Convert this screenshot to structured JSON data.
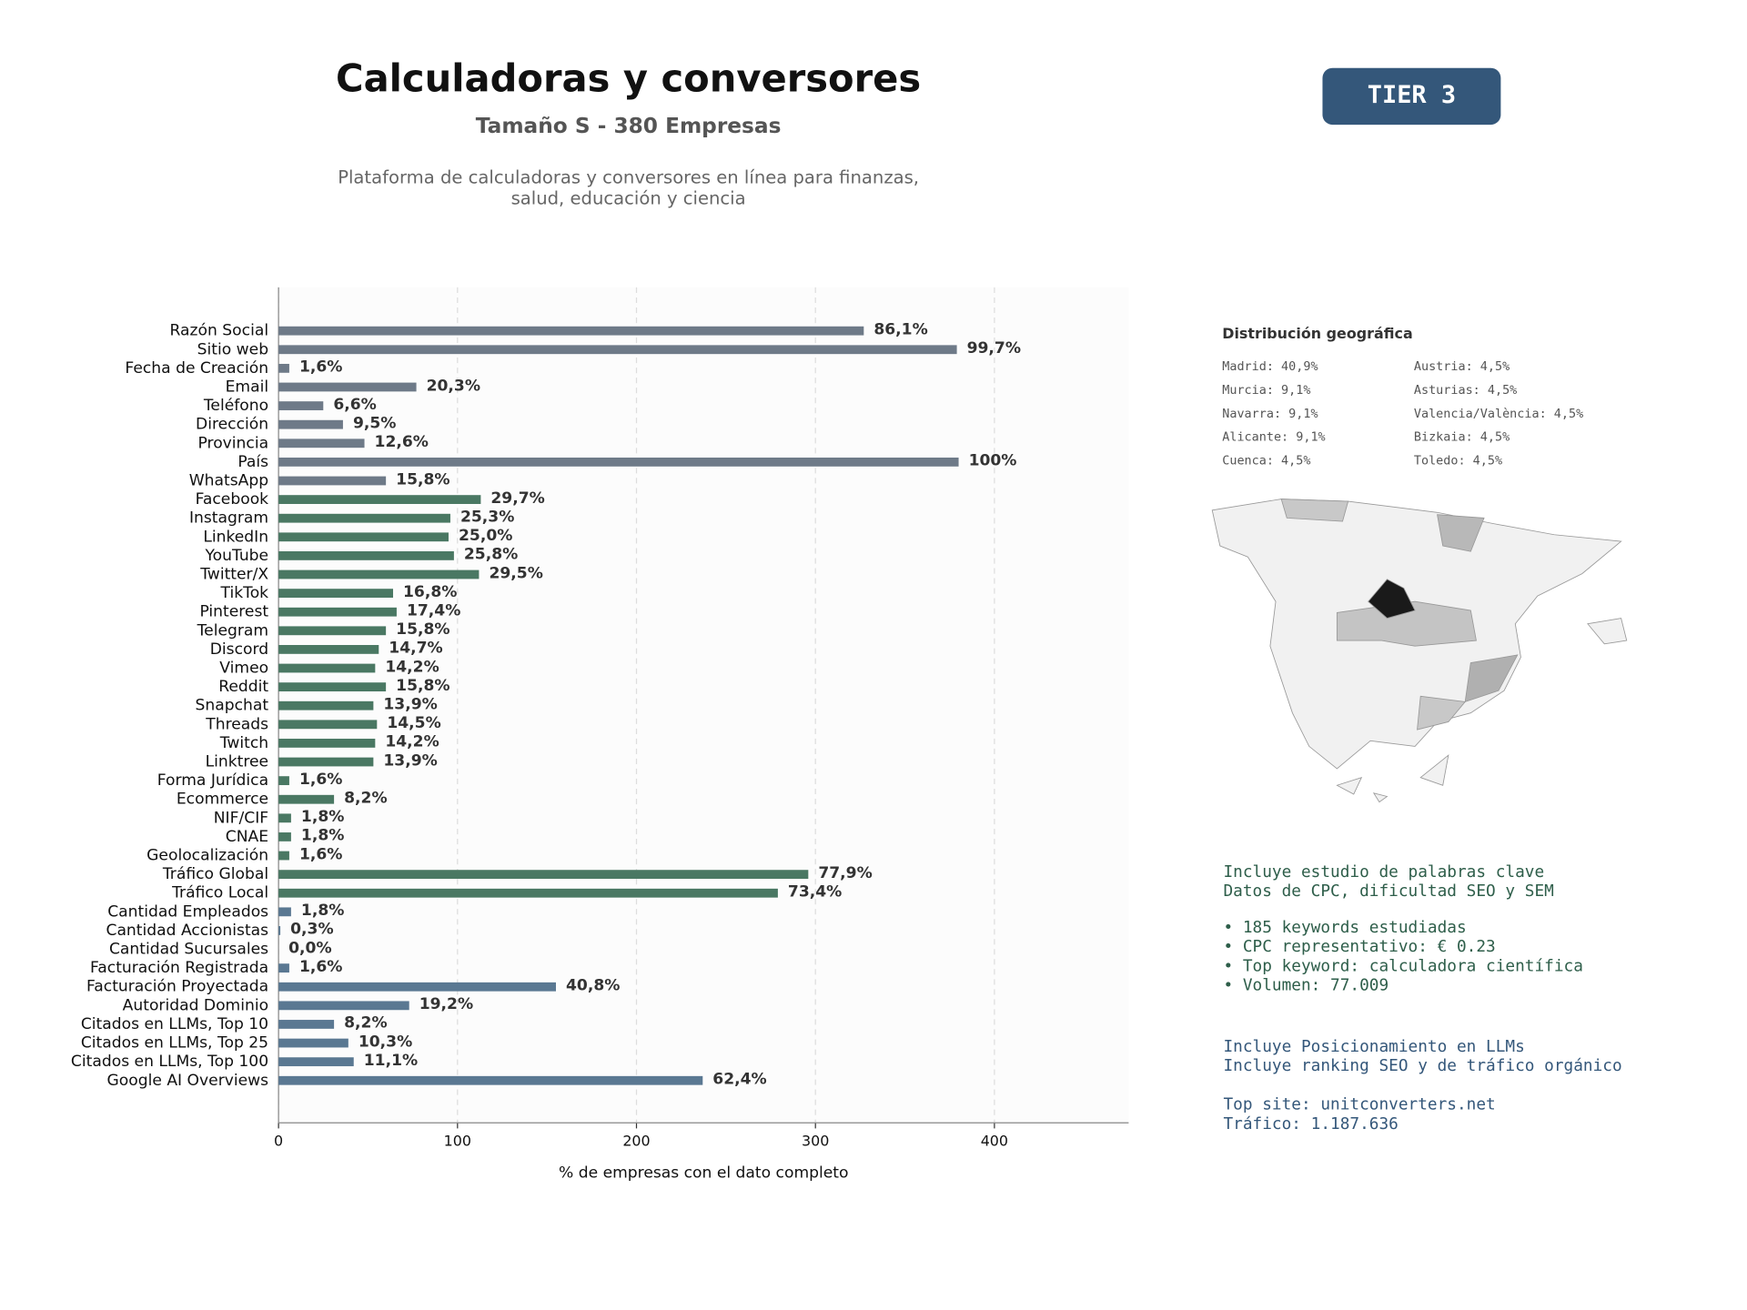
{
  "header": {
    "title": "Calculadoras y conversores",
    "subtitle": "Tamaño S - 380 Empresas",
    "description": [
      "Plataforma de calculadoras y conversores en línea para finanzas,",
      "salud, educación y ciencia"
    ],
    "badge": "TIER 3"
  },
  "geo": {
    "title": "Distribución geográfica",
    "items": [
      "Madrid: 40,9%",
      "Murcia: 9,1%",
      "Navarra: 9,1%",
      "Alicante: 9,1%",
      "Cuenca: 4,5%",
      "Austria: 4,5%",
      "Asturias: 4,5%",
      "Valencia/València: 4,5%",
      "Bizkaia: 4,5%",
      "Toledo: 4,5%"
    ]
  },
  "notes": [
    {
      "lines": [
        "Incluye estudio de palabras clave",
        "Datos de CPC, dificultad SEO y SEM"
      ]
    },
    {
      "lines": [
        "• 185 keywords estudiadas",
        "• CPC representativo: € 0.23",
        "• Top keyword: calculadora científica",
        "• Volumen: 77.009"
      ]
    },
    {
      "lines": [
        "Incluye Posicionamiento en LLMs",
        "Incluye ranking SEO y de tráfico orgánico"
      ]
    },
    {
      "lines": [
        "Top site: unitconverters.net",
        "Tráfico: 1.187.636"
      ]
    }
  ],
  "chart_data": {
    "type": "bar",
    "orientation": "horizontal",
    "x_label": "% de empresas con el dato completo",
    "categories": [
      "Razón Social",
      "Sitio web",
      "Fecha de Creación",
      "Email",
      "Teléfono",
      "Dirección",
      "Provincia",
      "País",
      "WhatsApp",
      "Facebook",
      "Instagram",
      "LinkedIn",
      "YouTube",
      "Twitter/X",
      "TikTok",
      "Pinterest",
      "Telegram",
      "Discord",
      "Vimeo",
      "Reddit",
      "Snapchat",
      "Threads",
      "Twitch",
      "Linktree",
      "Forma Jurídica",
      "Ecommerce",
      "NIF/CIF",
      "CNAE",
      "Geolocalización",
      "Tráfico Global",
      "Tráfico Local",
      "Cantidad Empleados",
      "Cantidad Accionistas",
      "Cantidad Sucursales",
      "Facturación Registrada",
      "Facturación Proyectada",
      "Autoridad Dominio",
      "Citados en LLMs, Top 10",
      "Citados en LLMs, Top 25",
      "Citados en LLMs, Top 100",
      "Google AI Overviews"
    ],
    "values": [
      327,
      379,
      6,
      77,
      25,
      36,
      48,
      380,
      60,
      113,
      96,
      95,
      98,
      112,
      64,
      66,
      60,
      56,
      54,
      60,
      53,
      55,
      54,
      53,
      6,
      31,
      7,
      7,
      6,
      296,
      279,
      7,
      1,
      0,
      6,
      155,
      73,
      31,
      39,
      42,
      237
    ],
    "value_labels": [
      "86,1%",
      "99,7%",
      "1,6%",
      "20,3%",
      "6,6%",
      "9,5%",
      "12,6%",
      "100%",
      "15,8%",
      "29,7%",
      "25,3%",
      "25,0%",
      "25,8%",
      "29,5%",
      "16,8%",
      "17,4%",
      "15,8%",
      "14,7%",
      "14,2%",
      "15,8%",
      "13,9%",
      "14,5%",
      "14,2%",
      "13,9%",
      "1,6%",
      "8,2%",
      "1,8%",
      "1,8%",
      "1,6%",
      "77,9%",
      "73,4%",
      "1,8%",
      "0,3%",
      "0,0%",
      "1,6%",
      "40,8%",
      "19,2%",
      "8,2%",
      "10,3%",
      "11,1%",
      "62,4%"
    ],
    "colors": [
      "#6e7a88",
      "#6e7a88",
      "#6e7a88",
      "#6e7a88",
      "#6e7a88",
      "#6e7a88",
      "#6e7a88",
      "#6e7a88",
      "#6e7a88",
      "#4a7863",
      "#4a7863",
      "#4a7863",
      "#4a7863",
      "#4a7863",
      "#4a7863",
      "#4a7863",
      "#4a7863",
      "#4a7863",
      "#4a7863",
      "#4a7863",
      "#4a7863",
      "#4a7863",
      "#4a7863",
      "#4a7863",
      "#4a7863",
      "#4a7863",
      "#4a7863",
      "#4a7863",
      "#4a7863",
      "#4a7863",
      "#4a7863",
      "#5a7892",
      "#5a7892",
      "#5a7892",
      "#5a7892",
      "#5a7892",
      "#5a7892",
      "#5a7892",
      "#5a7892",
      "#5a7892",
      "#5a7892"
    ],
    "xlim": [
      0,
      475
    ],
    "xticks": [
      0,
      100,
      200,
      300,
      400
    ],
    "grid": true
  }
}
